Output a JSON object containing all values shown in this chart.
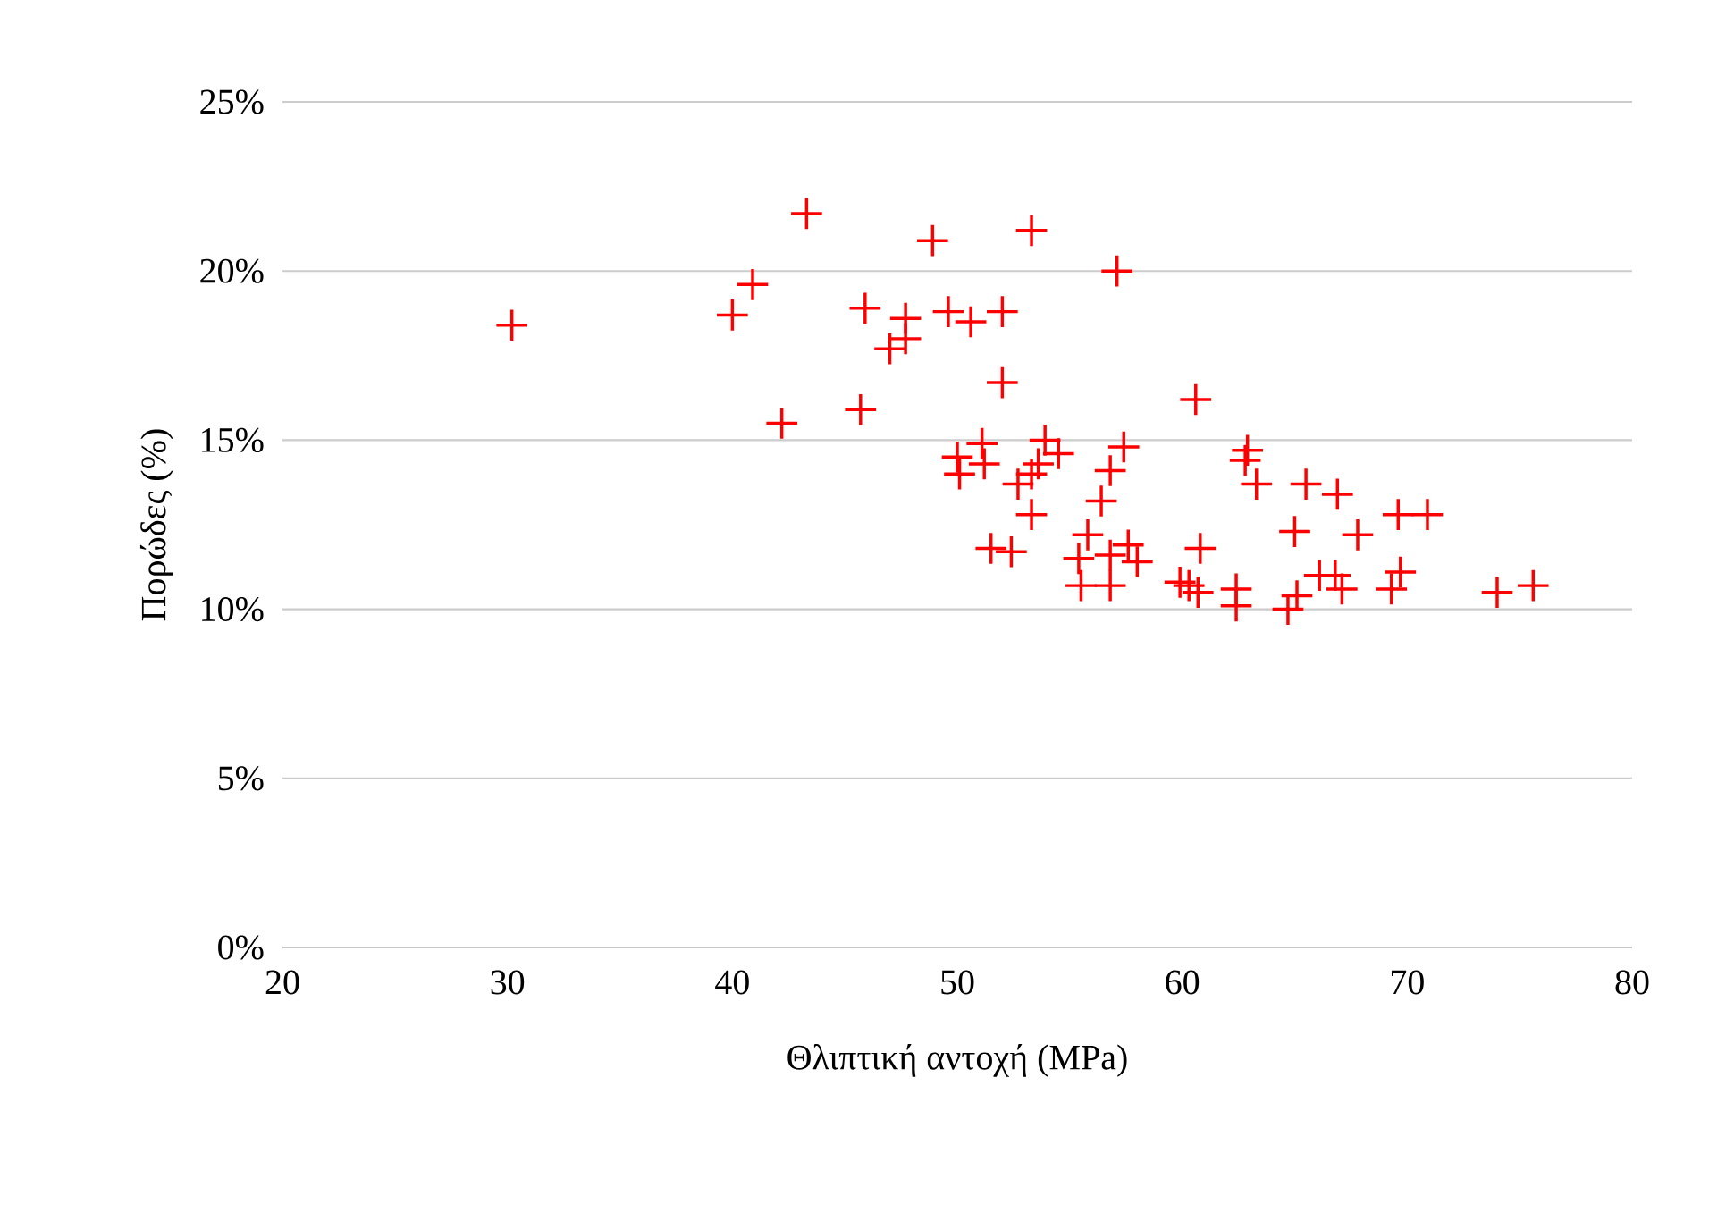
{
  "chart_data": {
    "type": "scatter",
    "xlabel": "Θλιπτική αντοχή (MPa)",
    "ylabel": "Πορώδες (%)",
    "xlim": [
      20,
      80
    ],
    "xticks": [
      20,
      30,
      40,
      50,
      60,
      70,
      80
    ],
    "ylim": [
      0,
      25
    ],
    "yticks": [
      {
        "value": 0,
        "label": "0%"
      },
      {
        "value": 5,
        "label": "5%"
      },
      {
        "value": 10,
        "label": "10%"
      },
      {
        "value": 15,
        "label": "15%"
      },
      {
        "value": 20,
        "label": "20%"
      },
      {
        "value": 25,
        "label": "25%"
      }
    ],
    "grid": "y",
    "marker": "cross",
    "series": [
      {
        "color": "#ff0000",
        "x": [
          30.2,
          40.0,
          40.9,
          42.2,
          43.3,
          45.7,
          45.9,
          47.0,
          47.7,
          47.7,
          48.9,
          49.6,
          50.6,
          52.0,
          52.0,
          53.3,
          50.0,
          50.1,
          51.1,
          51.2,
          53.9,
          54.5,
          57.4,
          53.6,
          53.3,
          52.7,
          53.3,
          56.8,
          56.4,
          51.5,
          52.4,
          55.8,
          55.4,
          56.8,
          57.6,
          58.0,
          55.5,
          56.8,
          59.9,
          60.3,
          60.7,
          60.8,
          60.6,
          57.1,
          62.9,
          62.8,
          63.3,
          62.4,
          62.4,
          64.7,
          65.1,
          66.1,
          66.8,
          67.1,
          65.0,
          65.5,
          66.9,
          67.8,
          69.6,
          70.9,
          69.7,
          69.3,
          74.0,
          75.6
        ],
        "values": [
          18.4,
          18.7,
          19.6,
          15.5,
          21.7,
          15.9,
          18.9,
          17.7,
          18.6,
          18.0,
          20.9,
          18.8,
          18.5,
          18.8,
          16.7,
          21.2,
          14.5,
          14.0,
          14.9,
          14.3,
          15.0,
          14.6,
          14.8,
          14.3,
          14.0,
          13.7,
          12.8,
          14.1,
          13.2,
          11.8,
          11.7,
          12.2,
          11.5,
          11.6,
          11.9,
          11.4,
          10.7,
          10.7,
          10.8,
          10.7,
          10.5,
          11.8,
          16.2,
          20.0,
          14.7,
          14.4,
          13.7,
          10.6,
          10.1,
          10.0,
          10.4,
          11.0,
          11.0,
          10.6,
          12.3,
          13.7,
          13.4,
          12.2,
          12.8,
          12.8,
          11.1,
          10.6,
          10.5,
          10.7
        ]
      }
    ]
  }
}
